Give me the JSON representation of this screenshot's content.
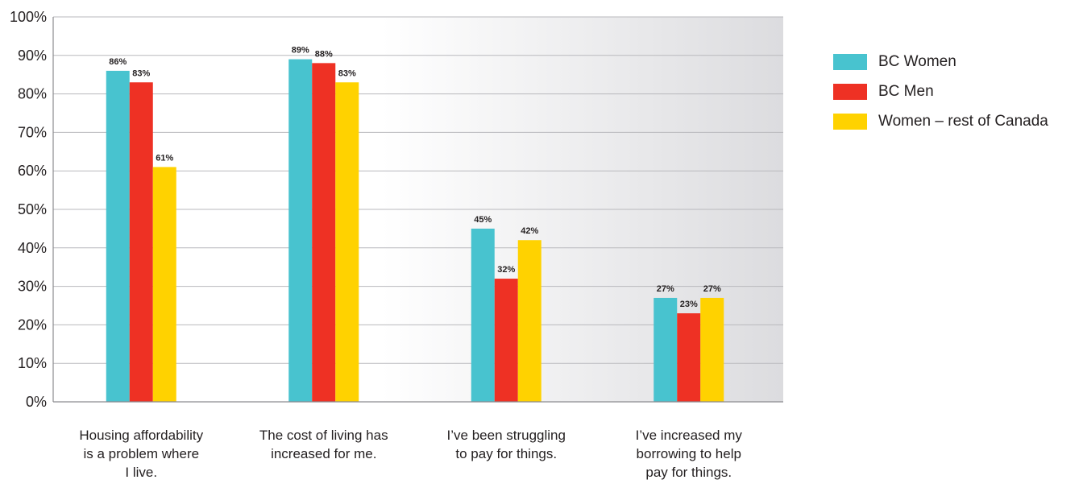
{
  "chart_data": {
    "type": "bar",
    "categories": [
      [
        "Housing affordability",
        "is a problem where",
        "I live."
      ],
      [
        "The cost of living has",
        "increased for me."
      ],
      [
        "I’ve been struggling",
        "to pay for things."
      ],
      [
        "I’ve increased my",
        "borrowing to help",
        "pay for things."
      ]
    ],
    "series": [
      {
        "name": "BC Women",
        "color": "#48c3cf",
        "values": [
          86,
          89,
          45,
          27
        ]
      },
      {
        "name": "BC Men",
        "color": "#ee3124",
        "values": [
          83,
          88,
          32,
          23
        ]
      },
      {
        "name": "Women – rest of Canada",
        "color": "#ffd200",
        "values": [
          61,
          83,
          42,
          27
        ]
      }
    ],
    "ylim": [
      0,
      100
    ],
    "yticks": [
      "0%",
      "10%",
      "20%",
      "30%",
      "40%",
      "50%",
      "60%",
      "70%",
      "80%",
      "90%",
      "100%"
    ],
    "value_suffix": "%",
    "grid": true,
    "legend_position": "right"
  }
}
